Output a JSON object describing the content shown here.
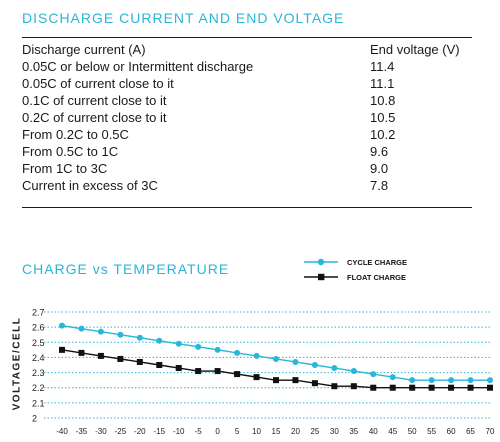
{
  "section1_title": "DISCHARGE CURRENT AND END VOLTAGE",
  "table": {
    "headers": [
      "Discharge current (A)",
      "End voltage (V)"
    ],
    "rows": [
      [
        "0.05C or below or Intermittent discharge",
        "11.4"
      ],
      [
        "0.05C of current close to it",
        "11.1"
      ],
      [
        "0.1C of current close to it",
        "10.8"
      ],
      [
        "0.2C of current close to it",
        "10.5"
      ],
      [
        "From 0.2C to 0.5C",
        "10.2"
      ],
      [
        "From 0.5C to 1C",
        "9.6"
      ],
      [
        "From 1C to 3C",
        "9.0"
      ],
      [
        "Current in excess of 3C",
        "7.8"
      ]
    ]
  },
  "section2_title": "CHARGE vs TEMPERATURE",
  "chart_data": {
    "type": "line",
    "title": "CHARGE vs TEMPERATURE",
    "xlabel": "",
    "ylabel": "VOLTAGE/CELL",
    "x": [
      -40,
      -35,
      -30,
      -25,
      -20,
      -15,
      -10,
      -5,
      0,
      5,
      10,
      15,
      20,
      25,
      30,
      35,
      40,
      45,
      50,
      55,
      60,
      65,
      70
    ],
    "x_ticks": [
      "-40",
      "-35",
      "-30",
      "-25",
      "-20",
      "-15",
      "-10",
      "-5",
      "0",
      "5",
      "10",
      "15",
      "20",
      "25",
      "30",
      "35",
      "40",
      "45",
      "50",
      "55",
      "60",
      "65",
      "70"
    ],
    "y_ticks": [
      "2",
      "2.1",
      "2.2",
      "2.3",
      "2.4",
      "2.5",
      "2.6",
      "2.7"
    ],
    "ylim": [
      2.0,
      2.7
    ],
    "grid": "horizontal dotted",
    "legend_position": "top",
    "series": [
      {
        "name": "CYCLE CHARGE",
        "color": "#29b6d8",
        "marker": "circle",
        "values": [
          2.61,
          2.59,
          2.57,
          2.55,
          2.53,
          2.51,
          2.49,
          2.47,
          2.45,
          2.43,
          2.41,
          2.39,
          2.37,
          2.35,
          2.33,
          2.31,
          2.29,
          2.27,
          2.25,
          2.25,
          2.25,
          2.25,
          2.25
        ]
      },
      {
        "name": "FLOAT CHARGE",
        "color": "#111111",
        "marker": "square",
        "values": [
          2.45,
          2.43,
          2.41,
          2.39,
          2.37,
          2.35,
          2.33,
          2.31,
          2.31,
          2.29,
          2.27,
          2.25,
          2.25,
          2.23,
          2.21,
          2.21,
          2.2,
          2.2,
          2.2,
          2.2,
          2.2,
          2.2,
          2.2
        ]
      }
    ]
  }
}
